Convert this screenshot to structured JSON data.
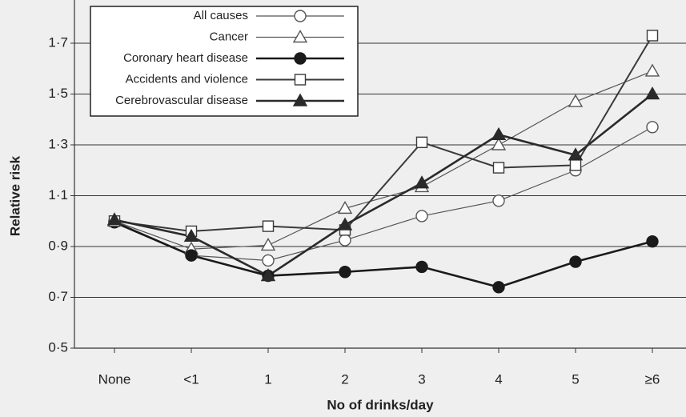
{
  "chart_data": {
    "type": "line",
    "xlabel": "No of drinks/day",
    "ylabel": "Relative risk",
    "categories": [
      "None",
      "<1",
      "1",
      "2",
      "3",
      "4",
      "5",
      "≥6"
    ],
    "series": [
      {
        "name": "All causes",
        "color": "#555555",
        "marker": "circle",
        "filled": false,
        "line_width": 1.2,
        "values": [
          1.0,
          0.865,
          0.845,
          0.925,
          1.02,
          1.08,
          1.2,
          1.37
        ]
      },
      {
        "name": "Cancer",
        "color": "#555555",
        "marker": "triangle",
        "filled": false,
        "line_width": 1.2,
        "values": [
          1.0,
          0.89,
          0.905,
          1.05,
          1.135,
          1.3,
          1.47,
          1.59
        ]
      },
      {
        "name": "Coronary heart disease",
        "color": "#1a1a1a",
        "marker": "circle",
        "filled": true,
        "line_width": 2.6,
        "values": [
          0.995,
          0.865,
          0.785,
          0.8,
          0.82,
          0.74,
          0.84,
          0.92
        ]
      },
      {
        "name": "Accidents and violence",
        "color": "#3a3a3a",
        "marker": "square",
        "filled": false,
        "line_width": 2,
        "values": [
          1.0,
          0.96,
          0.98,
          0.965,
          1.31,
          1.21,
          1.22,
          1.73
        ]
      },
      {
        "name": "Cerebrovascular disease",
        "color": "#2a2a2a",
        "marker": "triangle",
        "filled": true,
        "line_width": 2.6,
        "values": [
          1.005,
          0.94,
          0.785,
          0.985,
          1.15,
          1.34,
          1.26,
          1.5
        ]
      }
    ],
    "ylim": [
      0.5,
      1.7
    ],
    "yticks": [
      {
        "value": 0.5,
        "label": "0·5"
      },
      {
        "value": 0.7,
        "label": "0·7"
      },
      {
        "value": 0.9,
        "label": "0·9"
      },
      {
        "value": 1.1,
        "label": "1·1"
      },
      {
        "value": 1.3,
        "label": "1·3"
      },
      {
        "value": 1.5,
        "label": "1·5"
      },
      {
        "value": 1.7,
        "label": "1·7"
      }
    ],
    "grid": true,
    "legend": "upper left"
  }
}
